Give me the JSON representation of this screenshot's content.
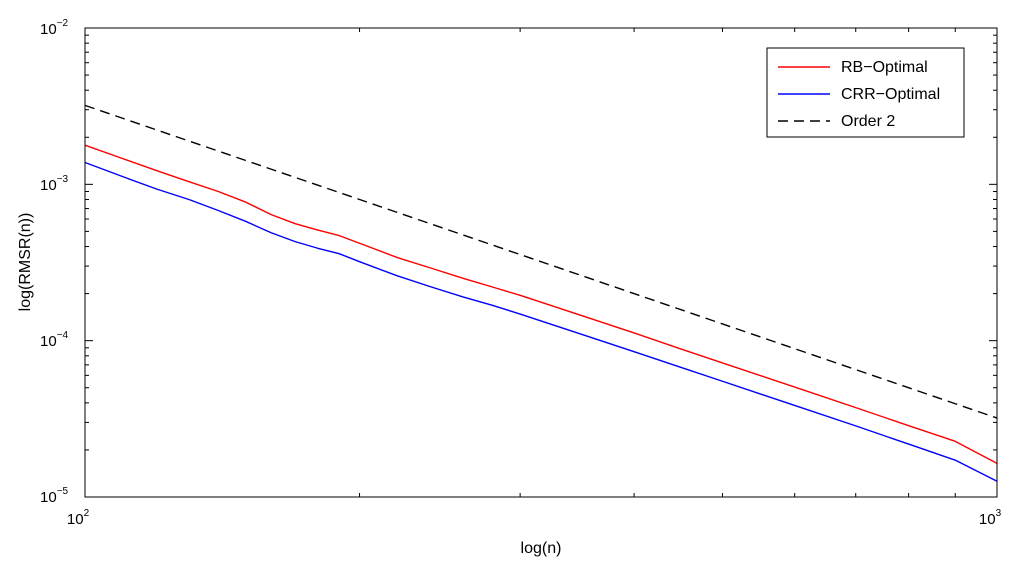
{
  "chart_data": {
    "type": "line",
    "xscale": "log",
    "yscale": "log",
    "xlabel": "log(n)",
    "ylabel": "log(RMSR(n))",
    "xlim": [
      100,
      1000
    ],
    "ylim": [
      1e-05,
      0.01
    ],
    "x_ticks": [
      {
        "base": "10",
        "exp": "2"
      },
      {
        "base": "10",
        "exp": "3"
      }
    ],
    "y_ticks": [
      {
        "base": "10",
        "exp": "−5"
      },
      {
        "base": "10",
        "exp": "−4"
      },
      {
        "base": "10",
        "exp": "−3"
      },
      {
        "base": "10",
        "exp": "−2"
      }
    ],
    "grid": false,
    "legend_position": "top-right",
    "series": [
      {
        "name": "RB−Optimal",
        "color": "#ff0000",
        "dash": "solid",
        "x": [
          100,
          110,
          120,
          130,
          140,
          150,
          160,
          170,
          180,
          190,
          200,
          220,
          240,
          260,
          280,
          300,
          350,
          400,
          450,
          500,
          600,
          700,
          800,
          900,
          1000
        ],
        "y": [
          0.00178,
          0.00146,
          0.00122,
          0.00104,
          0.0009,
          0.00077,
          0.00064,
          0.00056,
          0.00051,
          0.00047,
          0.00042,
          0.00034,
          0.00029,
          0.00025,
          0.00022,
          0.000195,
          0.000145,
          0.000112,
          8.85e-05,
          7.2e-05,
          5.05e-05,
          3.73e-05,
          2.86e-05,
          2.27e-05,
          1.64e-05
        ]
      },
      {
        "name": "CRR−Optimal",
        "color": "#0000ff",
        "dash": "solid",
        "x": [
          100,
          110,
          120,
          130,
          140,
          150,
          160,
          170,
          180,
          190,
          200,
          220,
          240,
          260,
          280,
          300,
          350,
          400,
          450,
          500,
          600,
          700,
          800,
          900,
          1000
        ],
        "y": [
          0.00138,
          0.00112,
          0.00093,
          0.0008,
          0.00068,
          0.00058,
          0.00049,
          0.00043,
          0.00039,
          0.00036,
          0.00032,
          0.00026,
          0.00022,
          0.00019,
          0.000168,
          0.000148,
          0.00011,
          8.5e-05,
          6.75e-05,
          5.5e-05,
          3.85e-05,
          2.85e-05,
          2.18e-05,
          1.72e-05,
          1.26e-05
        ]
      },
      {
        "name": "Order 2",
        "color": "#000000",
        "dash": "dashed",
        "x": [
          100,
          1000
        ],
        "y": [
          0.0032,
          3.2e-05
        ]
      }
    ]
  }
}
